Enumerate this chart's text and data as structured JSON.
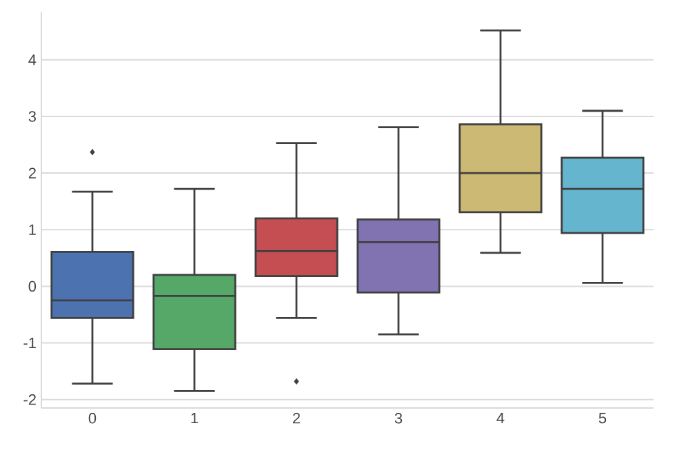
{
  "chart_data": {
    "type": "box",
    "categories": [
      "0",
      "1",
      "2",
      "3",
      "4",
      "5"
    ],
    "colors": [
      "#4c72b0",
      "#55a868",
      "#c44e52",
      "#8172b2",
      "#ccb974",
      "#64b5cd"
    ],
    "boxes": [
      {
        "low": -1.72,
        "q1": -0.56,
        "median": -0.25,
        "q3": 0.61,
        "high": 1.67,
        "outliers": [
          2.37
        ]
      },
      {
        "low": -1.85,
        "q1": -1.11,
        "median": -0.17,
        "q3": 0.2,
        "high": 1.72
      },
      {
        "low": -0.56,
        "q1": 0.18,
        "median": 0.62,
        "q3": 1.2,
        "high": 2.53,
        "outliers": [
          -1.68
        ]
      },
      {
        "low": -0.85,
        "q1": -0.11,
        "median": 0.78,
        "q3": 1.18,
        "high": 2.81
      },
      {
        "low": 0.59,
        "q1": 1.31,
        "median": 2.0,
        "q3": 2.86,
        "high": 4.52
      },
      {
        "low": 0.06,
        "q1": 0.94,
        "median": 1.72,
        "q3": 2.27,
        "high": 3.1
      }
    ],
    "ylim": [
      -2.15,
      4.85
    ],
    "yticks": [
      -2,
      -1,
      0,
      1,
      2,
      3,
      4
    ],
    "grid": "y",
    "marker": "diamond"
  }
}
